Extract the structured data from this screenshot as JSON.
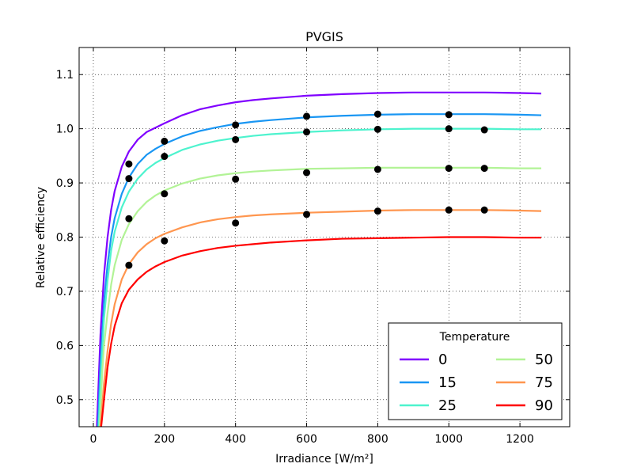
{
  "chart_data": {
    "type": "line",
    "title": "PVGIS",
    "xlabel": "Irradiance [W/m²]",
    "ylabel": "Relative efficiency",
    "xlim": [
      -40,
      1340
    ],
    "ylim": [
      0.45,
      1.15
    ],
    "xticks": [
      0,
      200,
      400,
      600,
      800,
      1000,
      1200
    ],
    "yticks": [
      0.5,
      0.6,
      0.7,
      0.8,
      0.9,
      1.0,
      1.1
    ],
    "ytick_labels": [
      "0.5",
      "0.6",
      "0.7",
      "0.8",
      "0.9",
      "1.0",
      "1.1"
    ],
    "grid": true,
    "legend": {
      "title": "Temperature",
      "placement": "lower-right",
      "columns": 2
    },
    "series": [
      {
        "name": "0",
        "color": "#8000ff",
        "x": [
          10,
          20,
          30,
          40,
          50,
          60,
          80,
          100,
          125,
          150,
          175,
          200,
          250,
          300,
          350,
          400,
          450,
          500,
          600,
          700,
          800,
          900,
          1000,
          1100,
          1200,
          1260
        ],
        "y": [
          0.45,
          0.62,
          0.73,
          0.8,
          0.85,
          0.885,
          0.93,
          0.958,
          0.98,
          0.994,
          1.002,
          1.01,
          1.025,
          1.036,
          1.043,
          1.049,
          1.053,
          1.056,
          1.061,
          1.064,
          1.066,
          1.067,
          1.067,
          1.067,
          1.066,
          1.065
        ]
      },
      {
        "name": "15",
        "color": "#1996f3",
        "x": [
          13,
          20,
          30,
          40,
          50,
          60,
          80,
          100,
          125,
          150,
          175,
          200,
          250,
          300,
          350,
          400,
          450,
          500,
          600,
          700,
          800,
          900,
          1000,
          1100,
          1200,
          1260
        ],
        "y": [
          0.45,
          0.57,
          0.68,
          0.75,
          0.8,
          0.835,
          0.88,
          0.91,
          0.935,
          0.952,
          0.963,
          0.972,
          0.986,
          0.996,
          1.003,
          1.009,
          1.013,
          1.016,
          1.021,
          1.024,
          1.026,
          1.027,
          1.027,
          1.027,
          1.026,
          1.025
        ]
      },
      {
        "name": "25",
        "color": "#4df3ce",
        "x": [
          15,
          20,
          30,
          40,
          50,
          60,
          80,
          100,
          125,
          150,
          175,
          200,
          250,
          300,
          350,
          400,
          450,
          500,
          600,
          700,
          800,
          900,
          1000,
          1100,
          1200,
          1260
        ],
        "y": [
          0.45,
          0.53,
          0.65,
          0.72,
          0.775,
          0.81,
          0.855,
          0.884,
          0.908,
          0.925,
          0.937,
          0.946,
          0.961,
          0.971,
          0.978,
          0.983,
          0.987,
          0.99,
          0.994,
          0.997,
          0.999,
          1.0,
          1.0,
          1.0,
          0.999,
          0.999
        ]
      },
      {
        "name": "50",
        "color": "#b2f396",
        "x": [
          18,
          25,
          30,
          40,
          50,
          60,
          80,
          100,
          125,
          150,
          175,
          200,
          250,
          300,
          350,
          400,
          450,
          500,
          600,
          700,
          800,
          900,
          1000,
          1100,
          1200,
          1260
        ],
        "y": [
          0.45,
          0.55,
          0.6,
          0.66,
          0.712,
          0.748,
          0.795,
          0.824,
          0.848,
          0.865,
          0.877,
          0.886,
          0.899,
          0.908,
          0.914,
          0.918,
          0.921,
          0.923,
          0.926,
          0.927,
          0.928,
          0.928,
          0.928,
          0.928,
          0.927,
          0.927
        ]
      },
      {
        "name": "75",
        "color": "#ff964f",
        "x": [
          20,
          30,
          40,
          50,
          60,
          80,
          100,
          125,
          150,
          175,
          200,
          250,
          300,
          350,
          400,
          450,
          500,
          600,
          700,
          800,
          900,
          1000,
          1100,
          1200,
          1260
        ],
        "y": [
          0.45,
          0.53,
          0.59,
          0.64,
          0.676,
          0.722,
          0.75,
          0.772,
          0.787,
          0.798,
          0.806,
          0.818,
          0.827,
          0.833,
          0.837,
          0.84,
          0.842,
          0.845,
          0.847,
          0.849,
          0.85,
          0.85,
          0.85,
          0.849,
          0.848
        ]
      },
      {
        "name": "90",
        "color": "#ff0000",
        "x": [
          22,
          30,
          40,
          50,
          60,
          80,
          100,
          125,
          150,
          175,
          200,
          250,
          300,
          350,
          400,
          450,
          500,
          600,
          700,
          800,
          900,
          1000,
          1100,
          1200,
          1260
        ],
        "y": [
          0.45,
          0.5,
          0.56,
          0.603,
          0.636,
          0.678,
          0.703,
          0.722,
          0.736,
          0.746,
          0.754,
          0.766,
          0.774,
          0.78,
          0.784,
          0.787,
          0.79,
          0.794,
          0.797,
          0.798,
          0.799,
          0.8,
          0.8,
          0.799,
          0.799
        ]
      }
    ],
    "markers": {
      "color": "#000000",
      "points": [
        [
          100,
          0.935
        ],
        [
          100,
          0.908
        ],
        [
          100,
          0.834
        ],
        [
          100,
          0.748
        ],
        [
          200,
          0.977
        ],
        [
          200,
          0.949
        ],
        [
          200,
          0.88
        ],
        [
          200,
          0.793
        ],
        [
          400,
          1.007
        ],
        [
          400,
          0.98
        ],
        [
          400,
          0.907
        ],
        [
          400,
          0.826
        ],
        [
          600,
          1.023
        ],
        [
          600,
          0.994
        ],
        [
          600,
          0.919
        ],
        [
          600,
          0.842
        ],
        [
          800,
          1.027
        ],
        [
          800,
          0.999
        ],
        [
          800,
          0.925
        ],
        [
          800,
          0.848
        ],
        [
          1000,
          1.026
        ],
        [
          1000,
          1.0
        ],
        [
          1000,
          0.927
        ],
        [
          1000,
          0.85
        ],
        [
          1100,
          0.998
        ],
        [
          1100,
          0.927
        ],
        [
          1100,
          0.85
        ]
      ]
    }
  }
}
